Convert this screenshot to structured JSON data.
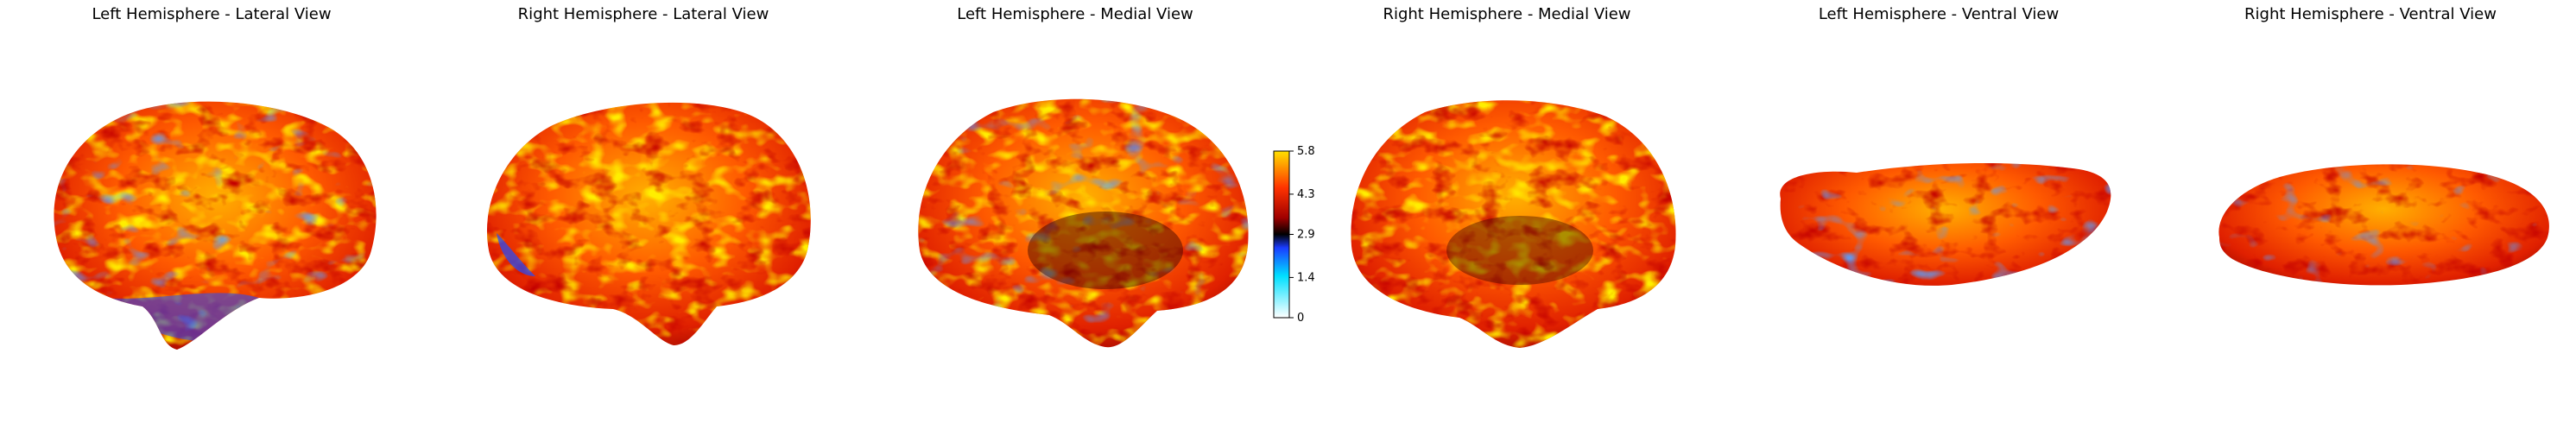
{
  "panels": [
    {
      "title": "Left Hemisphere - Lateral View"
    },
    {
      "title": "Right Hemisphere - Lateral View"
    },
    {
      "title": "Left Hemisphere - Medial View"
    },
    {
      "title": "Right Hemisphere - Medial View"
    },
    {
      "title": "Left Hemisphere - Ventral View"
    },
    {
      "title": "Right Hemisphere - Ventral View"
    }
  ],
  "colorbar": {
    "colormap": "cold-hot",
    "range": [
      0,
      5.8
    ],
    "ticks": [
      "5.8",
      "4.3",
      "2.9",
      "1.4",
      "0"
    ],
    "tick_values": [
      5.8,
      4.3,
      2.9,
      1.4,
      0
    ]
  },
  "colors": {
    "hot_low": "#7a0000",
    "hot_mid": "#ff3300",
    "hot_high": "#ffd000",
    "cold_low": "#00c8ff",
    "cold_high": "#1a3cff",
    "background": "#ffffff"
  }
}
